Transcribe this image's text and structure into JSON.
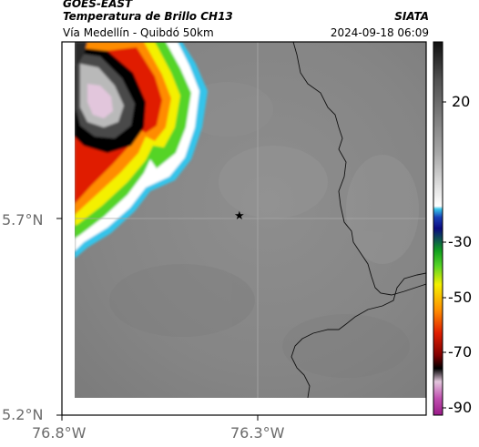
{
  "header": {
    "satellite": "GOES-EAST",
    "product": "Temperatura de Brillo CH13",
    "route": "Vía Medellín - Quibdó 50km",
    "agency": "SIATA",
    "datetime": "2024-09-18 06:09"
  },
  "axes": {
    "lat_ticks": [
      "5.7°N",
      "5.2°N"
    ],
    "lon_ticks": [
      "76.8°W",
      "76.3°W"
    ]
  },
  "colorbar": {
    "ticks": [
      "20",
      "-30",
      "-50",
      "-70",
      "-90"
    ],
    "stops": [
      {
        "t": 0.0,
        "color": "#101010"
      },
      {
        "t": 0.1,
        "color": "#505050"
      },
      {
        "t": 0.3,
        "color": "#a8a8a8"
      },
      {
        "t": 0.4,
        "color": "#e8e8e8"
      },
      {
        "t": 0.44,
        "color": "#ffffff"
      },
      {
        "t": 0.448,
        "color": "#36c4ea"
      },
      {
        "t": 0.47,
        "color": "#1a40b8"
      },
      {
        "t": 0.5,
        "color": "#0a0a80"
      },
      {
        "t": 0.56,
        "color": "#11a01e"
      },
      {
        "t": 0.6,
        "color": "#55d425"
      },
      {
        "t": 0.65,
        "color": "#f4f000"
      },
      {
        "t": 0.72,
        "color": "#ff8c00"
      },
      {
        "t": 0.78,
        "color": "#e01e00"
      },
      {
        "t": 0.84,
        "color": "#800000"
      },
      {
        "t": 0.875,
        "color": "#000000"
      },
      {
        "t": 0.91,
        "color": "#e2c6dc"
      },
      {
        "t": 0.955,
        "color": "#c050b0"
      },
      {
        "t": 1.0,
        "color": "#9a1a88"
      }
    ]
  },
  "marker": {
    "name": "star",
    "symbol": "★"
  }
}
